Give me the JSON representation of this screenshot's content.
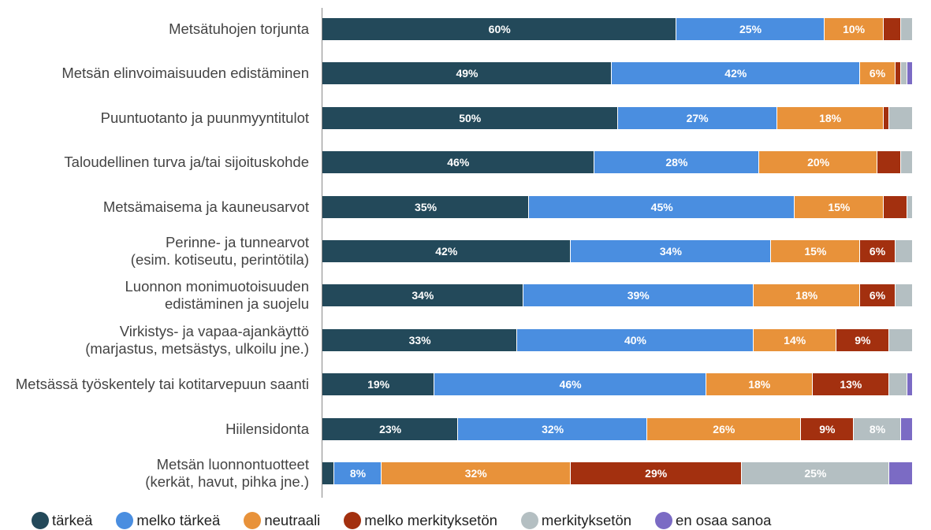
{
  "chart_data": {
    "type": "stacked_bar_horizontal",
    "categories": [
      "Metsätuhojen torjunta",
      "Metsän elinvoimaisuuden edistäminen",
      "Puuntuotanto ja puunmyyntitulot",
      "Taloudellinen turva ja/tai sijoituskohde",
      "Metsämaisema ja kauneusarvot",
      "Perinne- ja tunnearvot (esim. kotiseutu, perintötila)",
      "Luonnon monimuotoisuuden edistäminen ja suojelu",
      "Virkistys- ja vapaa-ajankäyttö (marjastus, metsästys, ulkoilu jne.)",
      "Metsässä työskentely tai kotitarvepuun saanti",
      "Hiilensidonta",
      "Metsän luonnontuotteet (kerkät, havut, pihka jne.)"
    ],
    "series": [
      {
        "name": "tärkeä",
        "color": "#23495a",
        "values": [
          60,
          49,
          50,
          46,
          35,
          42,
          34,
          33,
          19,
          23,
          2
        ],
        "value_labels": [
          "60%",
          "49%",
          "50%",
          "46%",
          "35%",
          "42%",
          "34%",
          "33%",
          "19%",
          "23%",
          null
        ]
      },
      {
        "name": "melko tärkeä",
        "color": "#4a8ee0",
        "values": [
          25,
          42,
          27,
          28,
          45,
          34,
          39,
          40,
          46,
          32,
          8
        ],
        "value_labels": [
          "25%",
          "42%",
          "27%",
          "28%",
          "45%",
          "34%",
          "39%",
          "40%",
          "46%",
          "32%",
          "8%"
        ]
      },
      {
        "name": "neutraali",
        "color": "#e8923a",
        "values": [
          10,
          6,
          18,
          20,
          15,
          15,
          18,
          14,
          18,
          26,
          32
        ],
        "value_labels": [
          "10%",
          "6%",
          "18%",
          "20%",
          "15%",
          "15%",
          "18%",
          "14%",
          "18%",
          "26%",
          "32%"
        ]
      },
      {
        "name": "melko merkityksetön",
        "color": "#a3300f",
        "values": [
          3,
          1,
          1,
          4,
          4,
          6,
          6,
          9,
          13,
          9,
          29
        ],
        "value_labels": [
          null,
          null,
          null,
          null,
          null,
          "6%",
          "6%",
          "9%",
          "13%",
          "9%",
          "29%"
        ]
      },
      {
        "name": "merkityksetön",
        "color": "#b4bfc2",
        "values": [
          2,
          1,
          4,
          2,
          1,
          3,
          3,
          4,
          3,
          8,
          25
        ],
        "value_labels": [
          null,
          null,
          null,
          null,
          null,
          null,
          null,
          null,
          null,
          "8%",
          "25%"
        ]
      },
      {
        "name": "en osaa sanoa",
        "color": "#7b6bc4",
        "values": [
          0,
          1,
          0,
          0,
          0,
          0,
          0,
          0,
          1,
          2,
          4
        ],
        "value_labels": [
          null,
          null,
          null,
          null,
          null,
          null,
          null,
          null,
          null,
          null,
          null
        ]
      }
    ],
    "xlim": [
      0,
      100
    ],
    "legend": "bottom"
  }
}
